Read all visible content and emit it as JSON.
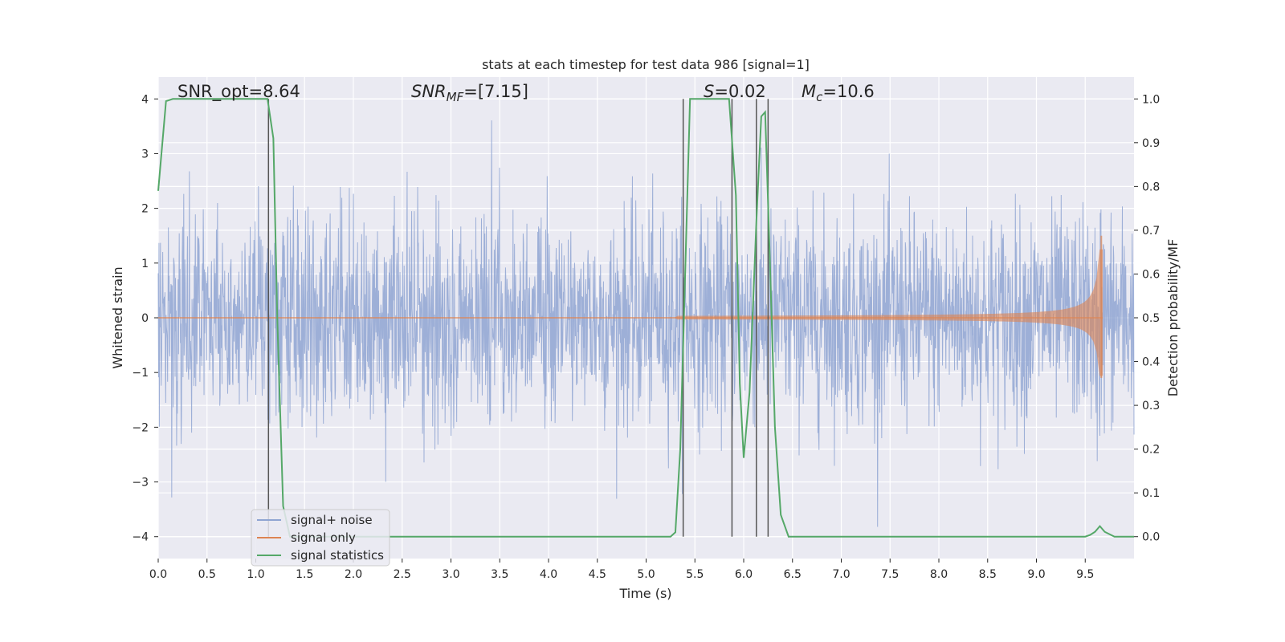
{
  "chart_data": {
    "type": "line",
    "title": "stats at each timestep for test data 986 [signal=1]",
    "xlabel": "Time (s)",
    "ylabel_left": "Whitened strain",
    "ylabel_right": "Detection probability/MF",
    "xlim": [
      0.0,
      10.0
    ],
    "ylim_left": [
      -4.4,
      4.4
    ],
    "ylim_right": [
      -0.05,
      1.05
    ],
    "x_ticks": [
      "0.0",
      "0.5",
      "1.0",
      "1.5",
      "2.0",
      "2.5",
      "3.0",
      "3.5",
      "4.0",
      "4.5",
      "5.0",
      "5.5",
      "6.0",
      "6.5",
      "7.0",
      "7.5",
      "8.0",
      "8.5",
      "9.0",
      "9.5"
    ],
    "y_ticks_left": [
      "4",
      "3",
      "2",
      "1",
      "0",
      "−1",
      "−2",
      "−3",
      "−4"
    ],
    "y_ticks_right": [
      "1.0",
      "0.9",
      "0.8",
      "0.7",
      "0.6",
      "0.5",
      "0.4",
      "0.3",
      "0.2",
      "0.1",
      "0.0"
    ],
    "grid": true,
    "background_color": "#eaeaf2",
    "annotations": {
      "snr_opt": "SNR_opt=8.64",
      "snr_mf": "=[7.15]",
      "s_val": "=0.02",
      "mc_val": "=10.6"
    },
    "legend": {
      "placement": "lower-left",
      "entries": [
        "signal+ noise",
        "signal only",
        "signal statistics"
      ]
    },
    "colors": {
      "noise": "#8fa5d2",
      "signal": "#dd8452",
      "stats": "#55a868",
      "vlines": "#555555"
    },
    "series": [
      {
        "name": "signal statistics",
        "axis": "right",
        "x": [
          0.0,
          0.08,
          0.15,
          1.0,
          1.12,
          1.18,
          1.22,
          1.28,
          1.35,
          5.0,
          5.25,
          5.3,
          5.35,
          5.45,
          5.5,
          5.85,
          5.92,
          5.96,
          6.0,
          6.06,
          6.13,
          6.18,
          6.22,
          6.27,
          6.32,
          6.38,
          6.46,
          6.6,
          9.5,
          9.55,
          9.6,
          9.65,
          9.7,
          9.8,
          10.0
        ],
        "y": [
          0.79,
          0.995,
          1.0,
          1.0,
          1.0,
          0.91,
          0.5,
          0.07,
          0.0,
          0.0,
          0.0,
          0.01,
          0.2,
          1.0,
          1.0,
          1.0,
          0.78,
          0.35,
          0.18,
          0.33,
          0.72,
          0.96,
          0.97,
          0.62,
          0.25,
          0.05,
          0.0,
          0.0,
          0.0,
          0.004,
          0.011,
          0.024,
          0.011,
          0.0,
          0.0
        ]
      }
    ],
    "vertical_markers_x": [
      1.13,
      5.38,
      5.88,
      6.13,
      6.25
    ]
  }
}
